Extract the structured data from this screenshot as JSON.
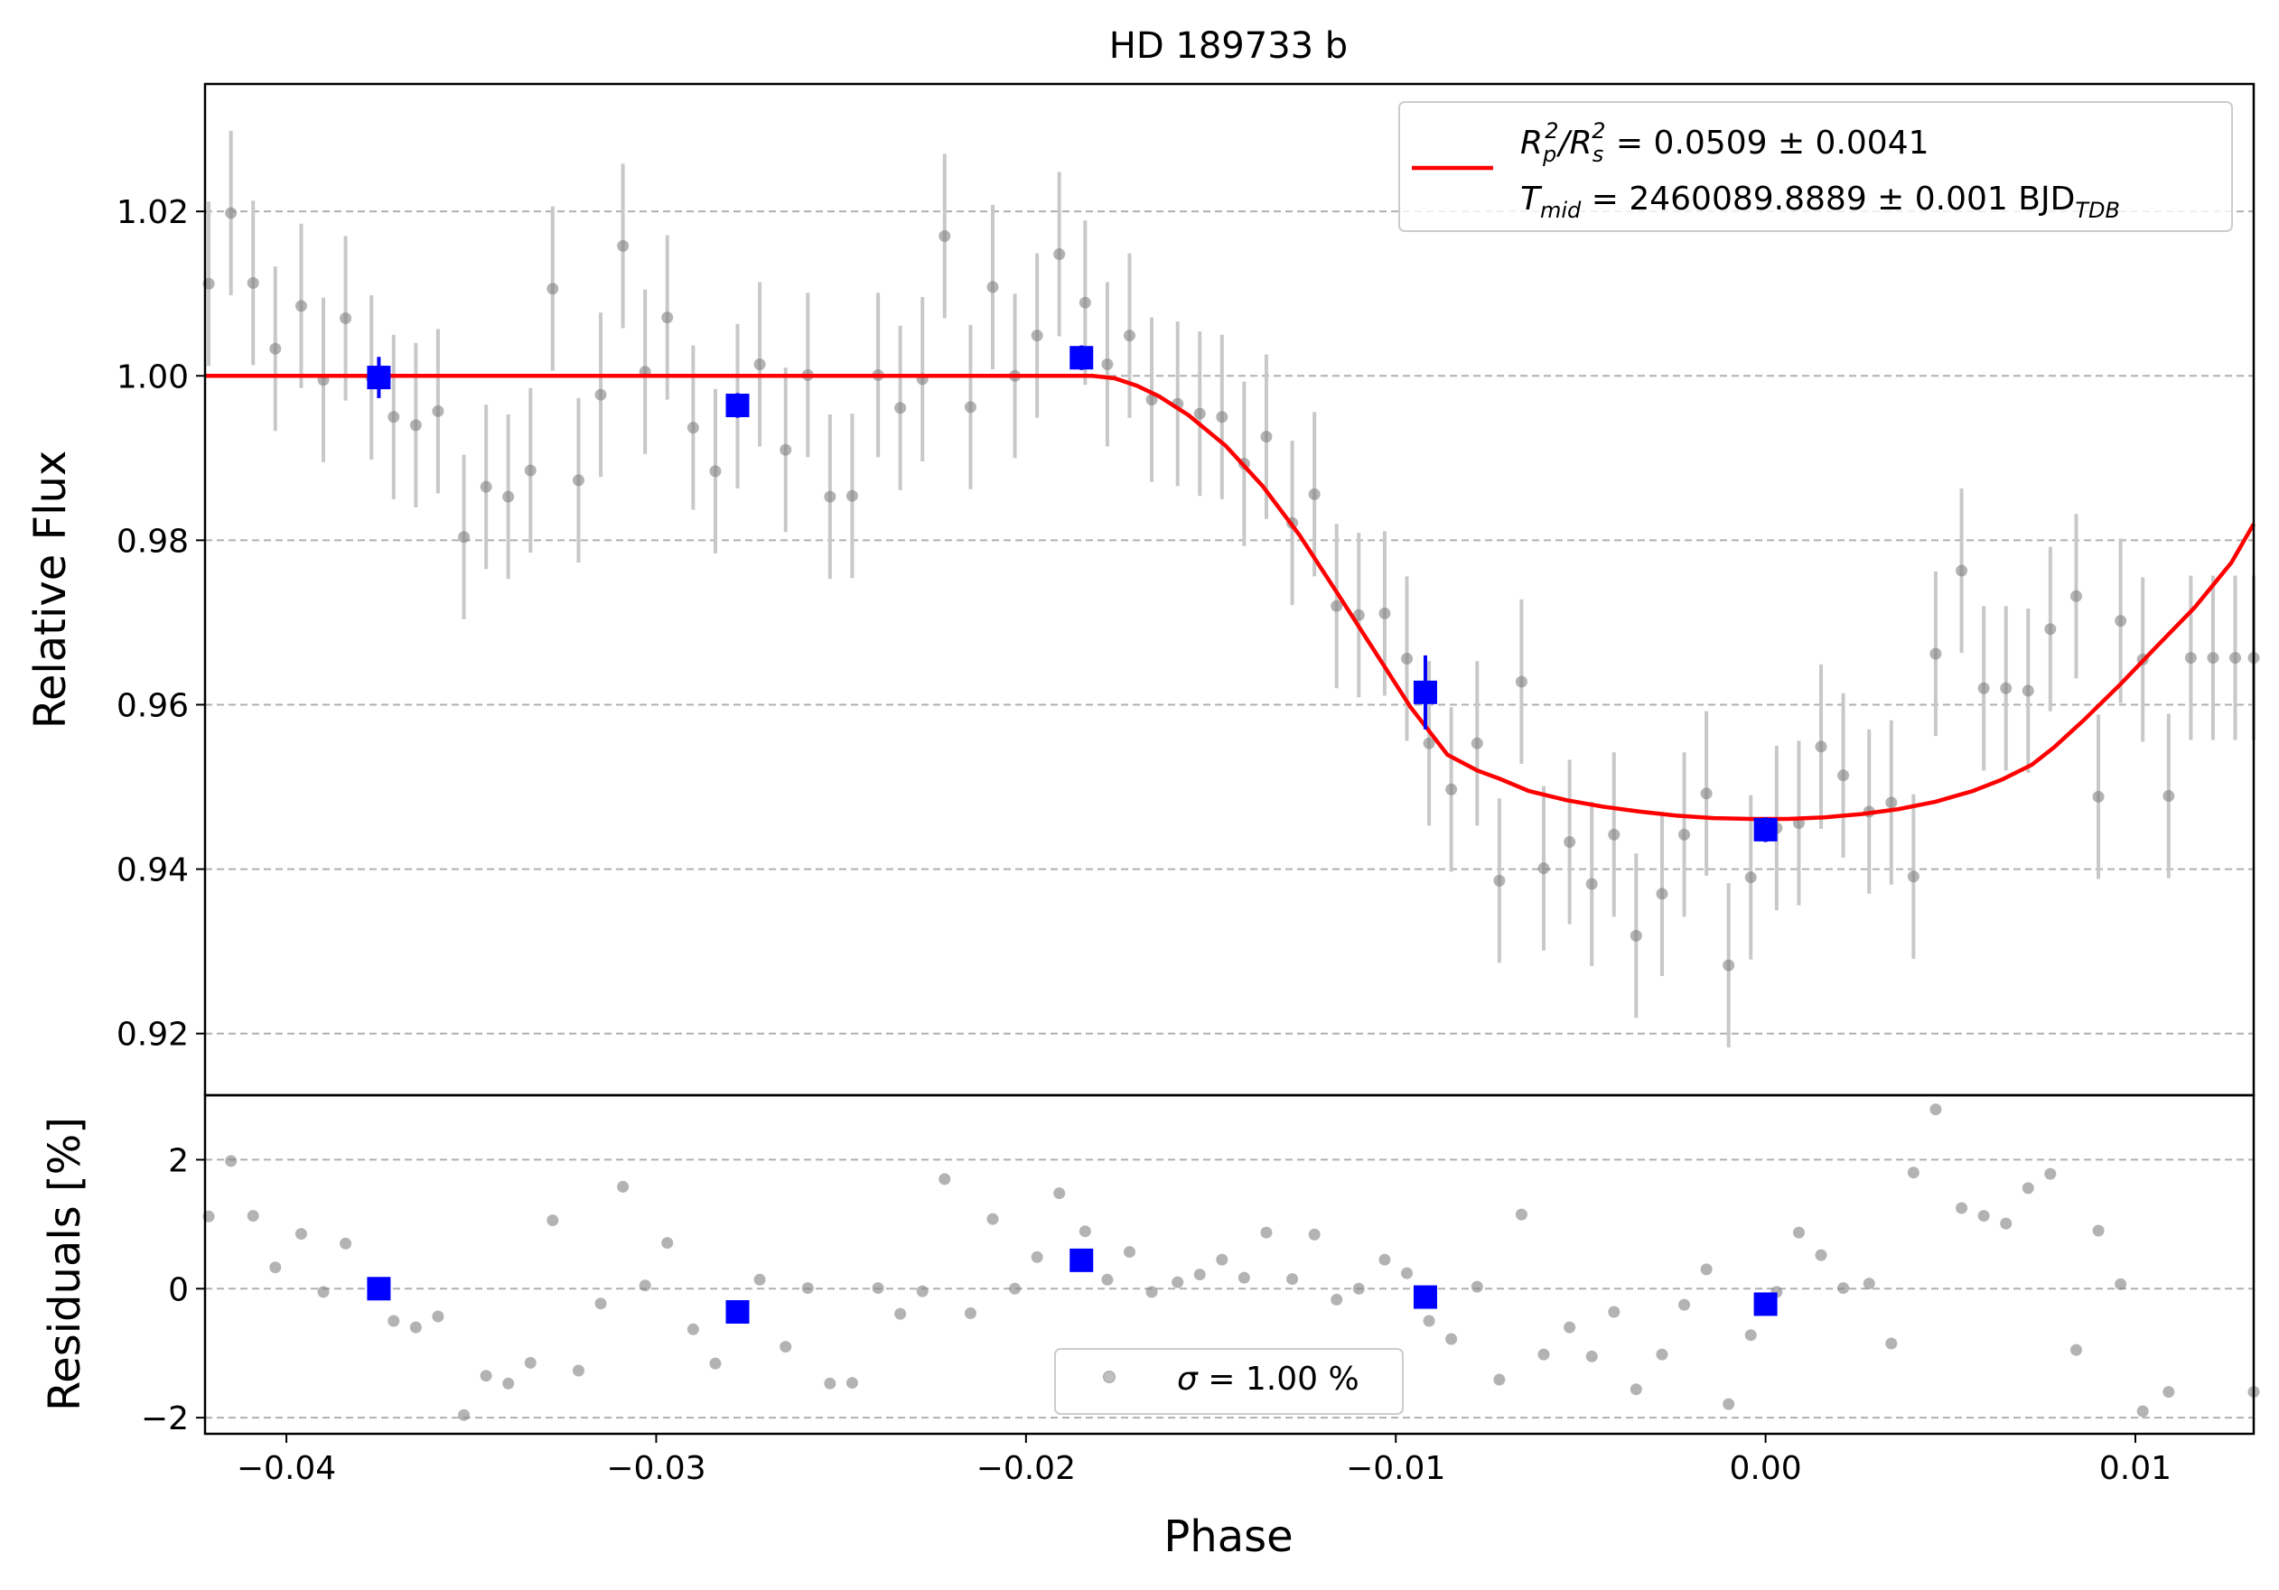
{
  "chart_data": [
    {
      "panel": "main",
      "type": "scatter",
      "title": "HD 189733 b",
      "ylabel": "Relative Flux",
      "xlim": [
        -0.0422,
        0.0132
      ],
      "ylim": [
        0.9125,
        1.0355
      ],
      "xticks": [
        -0.04,
        -0.03,
        -0.02,
        -0.01,
        0.0,
        0.01
      ],
      "yticks": [
        0.92,
        0.94,
        0.96,
        0.98,
        1.0,
        1.02
      ],
      "ytick_labels": [
        "0.92",
        "0.94",
        "0.96",
        "0.98",
        "1.00",
        "1.02"
      ],
      "grid": "horizontal dashed",
      "legend": {
        "placement": "upper right",
        "line1_prefix": "R",
        "line1_sub1": "p",
        "line1_sup1": "2",
        "line1_slash": "/R",
        "line1_sub2": "s",
        "line1_sup2": "2",
        "line1_value": " = 0.0509 ± 0.0041",
        "line2_prefix": "T",
        "line2_sub": "mid",
        "line2_value": " = 2460089.8889 ± 0.001 BJD",
        "line2_unit_sub": "TDB"
      },
      "colors": {
        "data": "#808080",
        "errorbar": "#c8c8c8",
        "binned": "#0000ff",
        "model": "#ff0000"
      },
      "series": [
        {
          "kind": "data",
          "x": [
            -0.0421,
            -0.0415,
            -0.0409,
            -0.0403,
            -0.0396,
            -0.039,
            -0.0384,
            -0.0377,
            -0.0371,
            -0.0365,
            -0.0359,
            -0.0352,
            -0.0346,
            -0.034,
            -0.0334,
            -0.0328,
            -0.0321,
            -0.0315,
            -0.0309,
            -0.0303,
            -0.0297,
            -0.029,
            -0.0284,
            -0.0278,
            -0.0272,
            -0.0265,
            -0.0259,
            -0.0253,
            -0.0247,
            -0.024,
            -0.0234,
            -0.0228,
            -0.0222,
            -0.0215,
            -0.0209,
            -0.0203,
            -0.0197,
            -0.0191,
            -0.0184,
            -0.0178,
            -0.0172,
            -0.0166,
            -0.0159,
            -0.0153,
            -0.0147,
            -0.0141,
            -0.0135,
            -0.0128,
            -0.0122,
            -0.0116,
            -0.011,
            -0.0103,
            -0.0097,
            -0.0091,
            -0.0085,
            -0.0078,
            -0.0072,
            -0.0066,
            -0.006,
            -0.0053,
            -0.0047,
            -0.0041,
            -0.0035,
            -0.0028,
            -0.0022,
            -0.0016,
            -0.001,
            -0.0004,
            0.0003,
            0.0009,
            0.0015,
            0.0021,
            0.0028,
            0.0034,
            0.004,
            0.0046,
            0.0053,
            0.0059,
            0.0065,
            0.0071,
            0.0077,
            0.0084,
            0.009,
            0.0096,
            0.0102,
            0.0109,
            0.0115,
            0.0121,
            0.0127,
            0.0132
          ],
          "y": [
            1.0112,
            1.0198,
            1.0113,
            1.0033,
            1.0085,
            0.9995,
            1.007,
            0.9998,
            0.995,
            0.994,
            0.9957,
            0.9804,
            0.9865,
            0.9853,
            0.9885,
            1.0106,
            0.9873,
            0.9977,
            1.0158,
            1.0005,
            1.0071,
            0.9937,
            0.9884,
            0.9963,
            1.0014,
            0.991,
            1.0001,
            0.9853,
            0.9854,
            1.0001,
            0.9961,
            0.9996,
            1.017,
            0.9962,
            1.0108,
            1.0,
            1.0049,
            1.0148,
            1.0089,
            1.0014,
            1.0049,
            0.9971,
            0.9966,
            0.9954,
            0.995,
            0.9893,
            0.9926,
            0.9821,
            0.9856,
            0.972,
            0.9709,
            0.9711,
            0.9656,
            0.9553,
            0.9497,
            0.9553,
            0.9386,
            0.9628,
            0.9401,
            0.9433,
            0.9382,
            0.9442,
            0.9319,
            0.937,
            0.9442,
            0.9492,
            0.9283,
            0.939,
            0.945,
            0.9456,
            0.9549,
            0.9514,
            0.947,
            0.9481,
            0.9391,
            0.9662,
            0.9763,
            0.962,
            0.962,
            0.9617,
            0.9692,
            0.9732,
            0.9488,
            0.9702,
            0.9655,
            0.9489,
            0.9657,
            0.9657,
            0.9657,
            0.9657
          ],
          "yerr": 0.01
        },
        {
          "kind": "binned",
          "x": [
            -0.0375,
            -0.0278,
            -0.0185,
            -0.0092,
            0.0
          ],
          "y": [
            0.9998,
            0.9964,
            1.0022,
            0.9615,
            0.9448
          ],
          "yerr": [
            0.0025,
            0.0015,
            0.0015,
            0.0045,
            0.0015
          ]
        },
        {
          "kind": "model",
          "x": [
            -0.0422,
            -0.0182,
            -0.0176,
            -0.017,
            -0.0164,
            -0.0156,
            -0.0146,
            -0.0136,
            -0.0126,
            -0.0116,
            -0.0106,
            -0.0096,
            -0.0086,
            -0.0078,
            -0.0072,
            -0.0064,
            -0.0054,
            -0.0044,
            -0.0034,
            -0.0024,
            -0.0014,
            -0.0004,
            0.0006,
            0.0016,
            0.0026,
            0.0036,
            0.0046,
            0.0056,
            0.0064,
            0.0072,
            0.0078,
            0.0086,
            0.0096,
            0.0106,
            0.0116,
            0.0126,
            0.0132
          ],
          "y": [
            1.0,
            1.0,
            0.9997,
            0.9988,
            0.9975,
            0.9952,
            0.9915,
            0.9866,
            0.9806,
            0.9737,
            0.9667,
            0.9597,
            0.9539,
            0.952,
            0.951,
            0.9495,
            0.9484,
            0.9476,
            0.947,
            0.9465,
            0.9462,
            0.9461,
            0.9461,
            0.9463,
            0.9467,
            0.9473,
            0.9482,
            0.9495,
            0.9509,
            0.9527,
            0.9548,
            0.9581,
            0.9625,
            0.9672,
            0.9718,
            0.9773,
            0.982
          ]
        }
      ]
    },
    {
      "panel": "residuals",
      "type": "scatter",
      "ylabel": "Residuals [%]",
      "xlabel": "Phase",
      "xlim": [
        -0.0422,
        0.0132
      ],
      "ylim": [
        -2.25,
        3.0
      ],
      "xticks": [
        -0.04,
        -0.03,
        -0.02,
        -0.01,
        0.0,
        0.01
      ],
      "xtick_labels": [
        "−0.04",
        "−0.03",
        "−0.02",
        "−0.01",
        "0.00",
        "0.01"
      ],
      "yticks": [
        -2,
        0,
        2
      ],
      "ytick_labels": [
        "−2",
        "0",
        "2"
      ],
      "grid": "horizontal dashed",
      "legend": {
        "placement": "lower center",
        "label_sigma": "σ",
        "label_value": " = 1.00 %"
      },
      "series": [
        {
          "kind": "data",
          "x": [
            -0.0421,
            -0.0415,
            -0.0409,
            -0.0403,
            -0.0396,
            -0.039,
            -0.0384,
            -0.0371,
            -0.0365,
            -0.0359,
            -0.0352,
            -0.0346,
            -0.034,
            -0.0334,
            -0.0328,
            -0.0321,
            -0.0315,
            -0.0309,
            -0.0303,
            -0.0297,
            -0.029,
            -0.0284,
            -0.0272,
            -0.0265,
            -0.0259,
            -0.0253,
            -0.0247,
            -0.024,
            -0.0234,
            -0.0228,
            -0.0222,
            -0.0215,
            -0.0209,
            -0.0203,
            -0.0197,
            -0.0191,
            -0.0184,
            -0.0178,
            -0.0172,
            -0.0166,
            -0.0159,
            -0.0153,
            -0.0147,
            -0.0141,
            -0.0135,
            -0.0128,
            -0.0122,
            -0.0116,
            -0.011,
            -0.0103,
            -0.0097,
            -0.0091,
            -0.0085,
            -0.0078,
            -0.0072,
            -0.0066,
            -0.006,
            -0.0053,
            -0.0047,
            -0.0041,
            -0.0035,
            -0.0028,
            -0.0022,
            -0.0016,
            -0.001,
            -0.0004,
            0.0003,
            0.0009,
            0.0015,
            0.0021,
            0.0028,
            0.0034,
            0.004,
            0.0046,
            0.0053,
            0.0059,
            0.0065,
            0.0071,
            0.0077,
            0.0084,
            0.009,
            0.0096,
            0.0102,
            0.0109,
            0.0132
          ],
          "y": [
            1.12,
            1.98,
            1.13,
            0.33,
            0.85,
            -0.05,
            0.7,
            -0.5,
            -0.6,
            -0.43,
            -1.96,
            -1.35,
            -1.47,
            -1.15,
            1.06,
            -1.27,
            -0.23,
            1.58,
            0.05,
            0.71,
            -0.63,
            -1.16,
            0.14,
            -0.9,
            0.01,
            -1.47,
            -1.46,
            0.01,
            -0.39,
            -0.04,
            1.7,
            -0.38,
            1.08,
            0.0,
            0.49,
            1.48,
            0.89,
            0.14,
            0.57,
            -0.05,
            0.1,
            0.22,
            0.45,
            0.17,
            0.87,
            0.15,
            0.84,
            -0.17,
            0.0,
            0.45,
            0.24,
            -0.5,
            -0.78,
            0.03,
            -1.41,
            1.15,
            -1.02,
            -0.6,
            -1.05,
            -0.36,
            -1.56,
            -1.02,
            -0.25,
            0.3,
            -1.79,
            -0.72,
            -0.05,
            0.87,
            0.52,
            0.01,
            0.08,
            -0.85,
            1.8,
            2.78,
            1.25,
            1.13,
            1.01,
            1.56,
            1.78,
            -0.95,
            0.9,
            0.07,
            -1.9,
            -1.6,
            -1.6
          ]
        },
        {
          "kind": "binned",
          "x": [
            -0.0375,
            -0.0278,
            -0.0185,
            -0.0092,
            0.0
          ],
          "y": [
            0.0,
            -0.36,
            0.44,
            -0.13,
            -0.24
          ]
        }
      ]
    }
  ]
}
